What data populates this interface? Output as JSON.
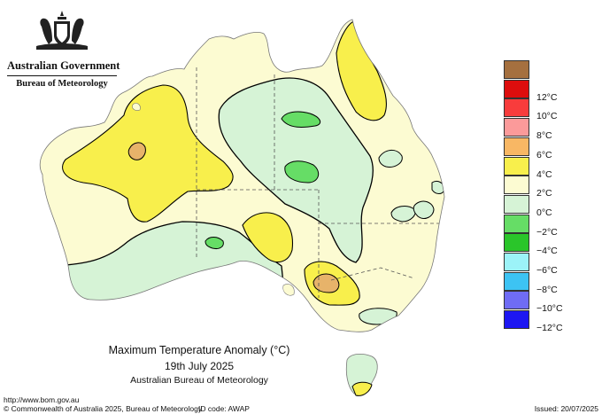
{
  "header": {
    "government": "Australian Government",
    "agency": "Bureau of Meteorology"
  },
  "map": {
    "title": "Maximum Temperature Anomaly (°C)",
    "date": "19th July 2025",
    "source": "Australian Bureau of Meteorology",
    "colors": {
      "ocean": "#ffffff",
      "zero_to_two": "#fcfbd2",
      "minus_two_to_zero": "#d6f3d6",
      "minus_four_to_minus_two": "#66dd66",
      "two_to_four": "#f8ef4c",
      "four_to_six": "#e7b36a"
    }
  },
  "legend": {
    "entries": [
      {
        "label": "",
        "color": "#a5703f"
      },
      {
        "label": "12°C",
        "color": "#dd0d0d"
      },
      {
        "label": "10°C",
        "color": "#f83c3c"
      },
      {
        "label": "8°C",
        "color": "#fb9a9a"
      },
      {
        "label": "6°C",
        "color": "#f8b764"
      },
      {
        "label": "4°C",
        "color": "#f8ef4c"
      },
      {
        "label": "2°C",
        "color": "#fcfbd2"
      },
      {
        "label": "0°C",
        "color": "#d6f3d6"
      },
      {
        "label": "−2°C",
        "color": "#66dd66"
      },
      {
        "label": "−4°C",
        "color": "#2ac52a"
      },
      {
        "label": "−6°C",
        "color": "#9cf3f8"
      },
      {
        "label": "−8°C",
        "color": "#3dc3f3"
      },
      {
        "label": "−10°C",
        "color": "#6f6cf5"
      },
      {
        "label": "−12°C",
        "color": "#1d17f2"
      }
    ]
  },
  "footer": {
    "url": "http://www.bom.gov.au",
    "copyright": "© Commonwealth of Australia 2025, Bureau of Meteorology",
    "id_code": "ID code: AWAP",
    "issued": "Issued: 20/07/2025"
  }
}
